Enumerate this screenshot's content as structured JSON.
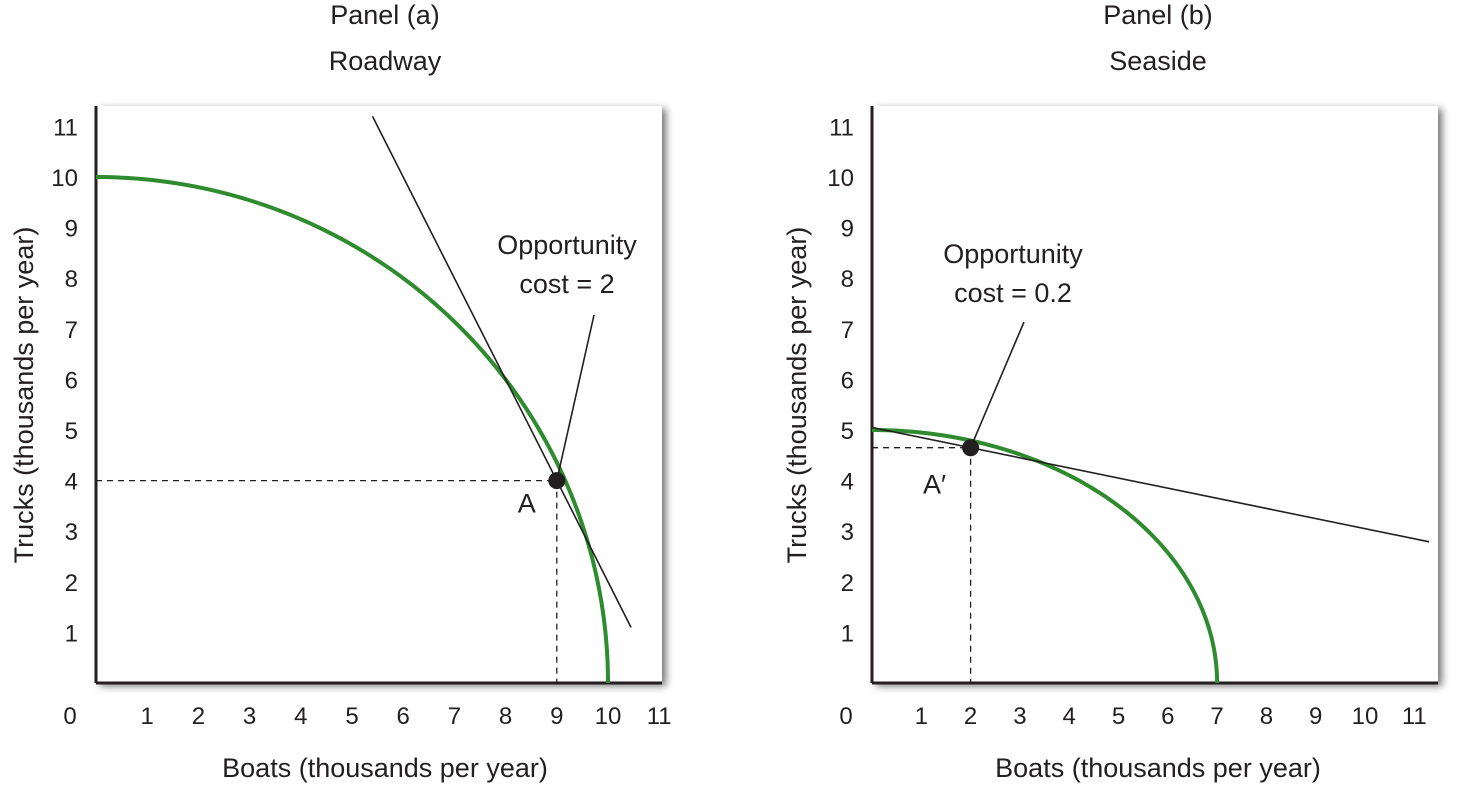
{
  "chart_data": [
    {
      "type": "line",
      "panel_label": "Panel (a)",
      "title": "Roadway",
      "xlabel": "Boats (thousands per year)",
      "ylabel": "Trucks (thousands per year)",
      "xlim": [
        0,
        11
      ],
      "ylim": [
        0,
        11
      ],
      "x_ticks": [
        "0",
        "1",
        "2",
        "3",
        "4",
        "5",
        "6",
        "7",
        "8",
        "9",
        "10",
        "11"
      ],
      "y_ticks": [
        "1",
        "2",
        "3",
        "4",
        "5",
        "6",
        "7",
        "8",
        "9",
        "10",
        "11"
      ],
      "grid": false,
      "frontier": {
        "x_intercept": 10,
        "y_intercept": 10,
        "color": "#2e8b2e"
      },
      "point": {
        "label": "A",
        "x": 9,
        "y": 4
      },
      "tangent": {
        "slope": -2,
        "x_range": [
          5.4,
          10.45
        ],
        "color": "#231f20"
      },
      "annotation": {
        "lines": [
          "Opportunity",
          "cost = 2"
        ]
      }
    },
    {
      "type": "line",
      "panel_label": "Panel (b)",
      "title": "Seaside",
      "xlabel": "Boats (thousands per year)",
      "ylabel": "Trucks (thousands per year)",
      "xlim": [
        0,
        11
      ],
      "ylim": [
        0,
        11
      ],
      "x_ticks": [
        "0",
        "1",
        "2",
        "3",
        "4",
        "5",
        "6",
        "7",
        "8",
        "9",
        "10",
        "11"
      ],
      "y_ticks": [
        "1",
        "2",
        "3",
        "4",
        "5",
        "6",
        "7",
        "8",
        "9",
        "10",
        "11"
      ],
      "grid": false,
      "frontier": {
        "x_intercept": 7,
        "y_intercept": 5,
        "color": "#2e8b2e"
      },
      "point": {
        "label": "A′",
        "x": 2,
        "y": 4.65
      },
      "tangent": {
        "slope": -0.2,
        "x_range": [
          0,
          11.3
        ],
        "color": "#231f20"
      },
      "annotation": {
        "lines": [
          "Opportunity",
          "cost = 0.2"
        ]
      }
    }
  ]
}
